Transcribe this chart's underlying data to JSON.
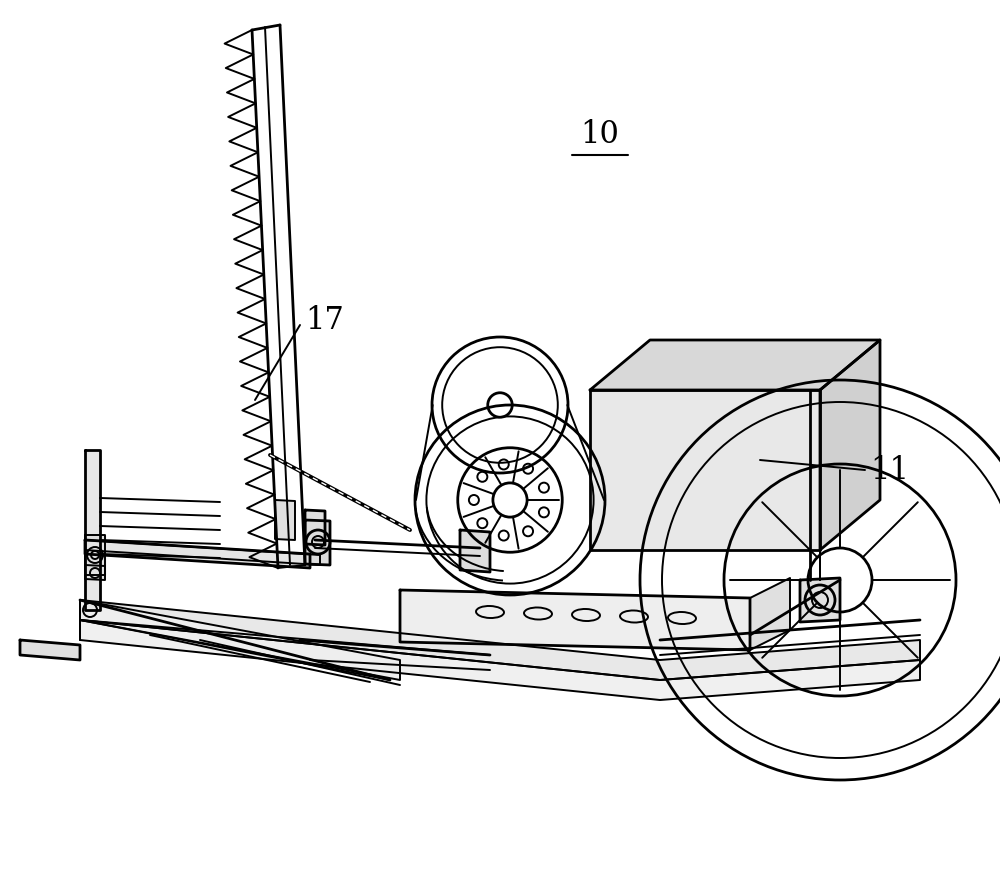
{
  "background_color": "#ffffff",
  "line_color": "#000000",
  "label_10": "10",
  "label_11": "11",
  "label_17": "17",
  "fig_width": 10.0,
  "fig_height": 8.89,
  "dpi": 100
}
